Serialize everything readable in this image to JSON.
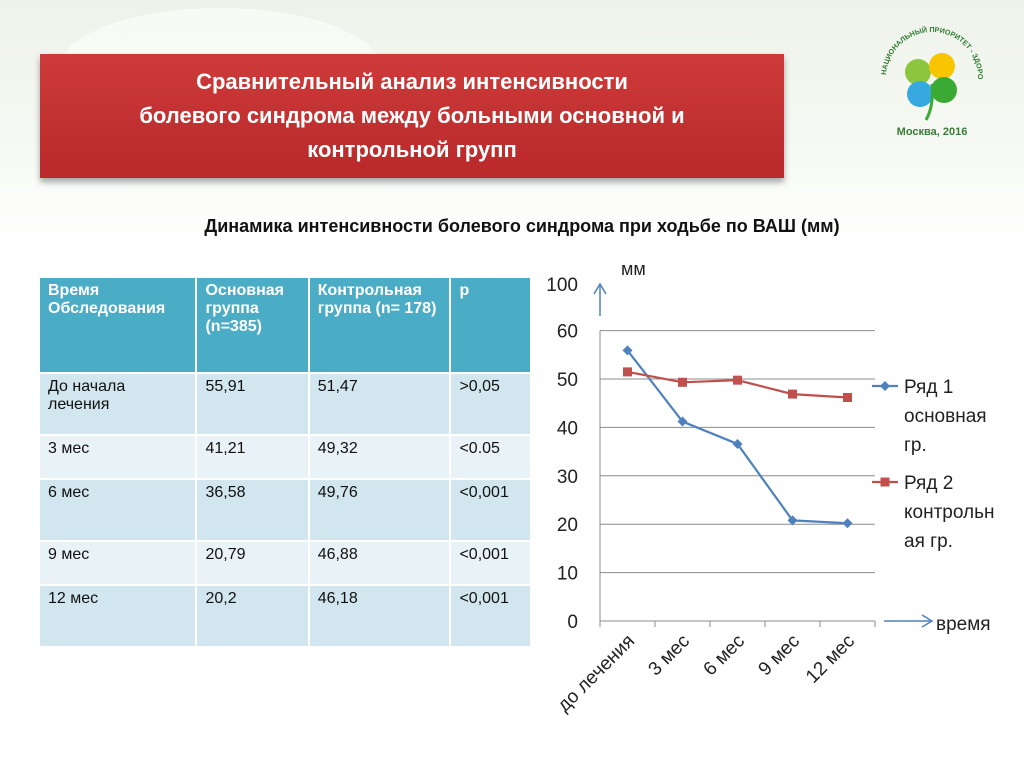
{
  "slide": {
    "title_lines": [
      "Сравнительный анализ интенсивности",
      "болевого синдрома между больными основной и",
      "контрольной групп"
    ],
    "subtitle": "Динамика интенсивности болевого синдрома при ходьбе по ВАШ (мм)",
    "logo": {
      "arc_text": "НАЦИОНАЛЬНЫЙ ПРИОРИТЕТ - ЗДОРОВЬЕ!",
      "city_year": "Москва, 2016"
    }
  },
  "table": {
    "headers": [
      "Время Обследования",
      "Основная группа (n=385)",
      "Контрольная группа  (n= 178)",
      "p"
    ],
    "rows": [
      [
        "До начала лечения",
        "55,91",
        "51,47",
        ">0,05"
      ],
      [
        "3 мес",
        "41,21",
        "49,32",
        "<0.05"
      ],
      [
        "6 мес",
        "36,58",
        "49,76",
        "<0,001"
      ],
      [
        "9 мес",
        "20,79",
        "46,88",
        "<0,001"
      ],
      [
        "12 мес",
        "20,2",
        "46,18",
        "<0,001"
      ]
    ]
  },
  "chart_data": {
    "type": "line",
    "title": "",
    "ylabel": "мм",
    "xlabel": "время",
    "ylim": [
      0,
      100
    ],
    "yticks": [
      0,
      10,
      20,
      30,
      40,
      50,
      60,
      100
    ],
    "categories": [
      "до лечения",
      "3 мес",
      "6 мес",
      "9 мес",
      "12 мес"
    ],
    "series": [
      {
        "name": "Ряд 1 основная гр.",
        "legend_lines": [
          "Ряд 1",
          "основная",
          "гр."
        ],
        "color": "#4f81bd",
        "marker": "diamond",
        "values": [
          55.91,
          41.21,
          36.58,
          20.79,
          20.2
        ]
      },
      {
        "name": "Ряд 2 контрольная гр.",
        "legend_lines": [
          "Ряд 2",
          "контрольн",
          "ая гр."
        ],
        "color": "#c0504d",
        "marker": "square",
        "values": [
          51.47,
          49.32,
          49.76,
          46.88,
          46.18
        ]
      }
    ],
    "legend_position": "right"
  }
}
